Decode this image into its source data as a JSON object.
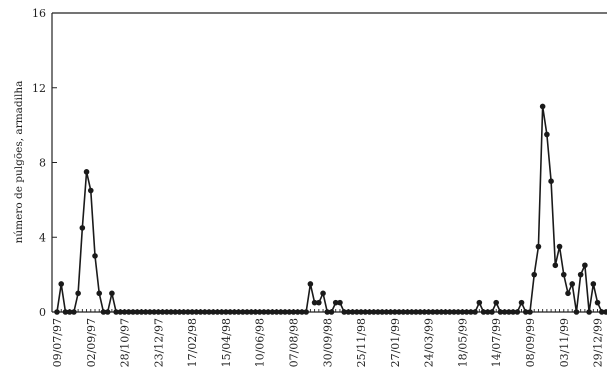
{
  "chart_data": {
    "type": "line",
    "title": "",
    "xlabel": "",
    "ylabel": "número de pulgões, armadilha",
    "ylim": [
      0,
      16
    ],
    "yticks": [
      0,
      4,
      8,
      12,
      16
    ],
    "grid": false,
    "marker": "circle",
    "series_color": "#1a1a1a",
    "x_tick_labels": [
      "09/07/97",
      "02/09/97",
      "28/10/97",
      "23/12/97",
      "17/02/98",
      "15/04/98",
      "10/06/98",
      "07/08/98",
      "30/09/98",
      "25/11/98",
      "27/01/99",
      "24/03/99",
      "18/05/99",
      "14/07/99",
      "08/09/99",
      "03/11/99",
      "29/12/99"
    ],
    "x_start": "09/07/97",
    "sample_interval_days": 7,
    "values": [
      0,
      1.5,
      0,
      0,
      0,
      1,
      4.5,
      7.5,
      6.5,
      3,
      1,
      0,
      0,
      1,
      0,
      0,
      0,
      0,
      0,
      0,
      0,
      0,
      0,
      0,
      0,
      0,
      0,
      0,
      0,
      0,
      0,
      0,
      0,
      0,
      0,
      0,
      0,
      0,
      0,
      0,
      0,
      0,
      0,
      0,
      0,
      0,
      0,
      0,
      0,
      0,
      0,
      0,
      0,
      0,
      0,
      0,
      0,
      0,
      0,
      0,
      1.5,
      0.5,
      0.5,
      1,
      0,
      0,
      0.5,
      0.5,
      0,
      0,
      0,
      0,
      0,
      0,
      0,
      0,
      0,
      0,
      0,
      0,
      0,
      0,
      0,
      0,
      0,
      0,
      0,
      0,
      0,
      0,
      0,
      0,
      0,
      0,
      0,
      0,
      0,
      0,
      0,
      0,
      0.5,
      0,
      0,
      0,
      0.5,
      0,
      0,
      0,
      0,
      0,
      0.5,
      0,
      0,
      2,
      3.5,
      11,
      9.5,
      7,
      2.5,
      3.5,
      2,
      1,
      1.5,
      0,
      2,
      2.5,
      0,
      1.5,
      0.5,
      0,
      0
    ]
  }
}
